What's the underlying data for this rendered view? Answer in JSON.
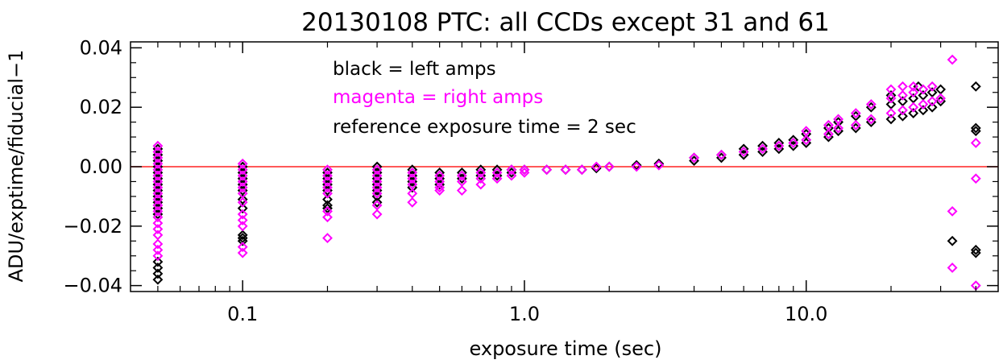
{
  "chart_data": {
    "type": "scatter",
    "title": "20130108 PTC: all CCDs except 31 and 61",
    "xlabel": "exposure time (sec)",
    "ylabel": "ADU/exptime/fiducial−1",
    "xscale": "log",
    "xlim": [
      0.04,
      48
    ],
    "ylim": [
      -0.042,
      0.042
    ],
    "x_ticks": [
      {
        "value": 0.1,
        "label": "0.1"
      },
      {
        "value": 1.0,
        "label": "1.0"
      },
      {
        "value": 10.0,
        "label": "10.0"
      }
    ],
    "y_ticks": [
      {
        "value": 0.04,
        "label": "0.04"
      },
      {
        "value": 0.02,
        "label": "0.02"
      },
      {
        "value": 0.0,
        "label": "0.00"
      },
      {
        "value": -0.02,
        "label": "−0.02"
      },
      {
        "value": -0.04,
        "label": "−0.04"
      }
    ],
    "reference_line": {
      "y": 0.0,
      "color": "#ff2020"
    },
    "annotations": [
      {
        "text": "black = left amps",
        "color": "#000000"
      },
      {
        "text": "magenta = right amps",
        "color": "#ff00ff"
      },
      {
        "text": "reference exposure time = 2 sec",
        "color": "#000000"
      }
    ],
    "marker": "open-diamond",
    "series": [
      {
        "color": "#000000",
        "points": [
          [
            0.05,
            0.006
          ],
          [
            0.05,
            0.004
          ],
          [
            0.05,
            0.002
          ],
          [
            0.05,
            0.0
          ],
          [
            0.05,
            -0.002
          ],
          [
            0.05,
            -0.004
          ],
          [
            0.05,
            -0.006
          ],
          [
            0.05,
            -0.008
          ],
          [
            0.05,
            -0.01
          ],
          [
            0.05,
            -0.012
          ],
          [
            0.05,
            -0.014
          ],
          [
            0.05,
            -0.016
          ],
          [
            0.05,
            -0.032
          ],
          [
            0.05,
            -0.034
          ],
          [
            0.05,
            -0.036
          ],
          [
            0.05,
            -0.038
          ],
          [
            0.1,
            0.0
          ],
          [
            0.1,
            -0.002
          ],
          [
            0.1,
            -0.004
          ],
          [
            0.1,
            -0.006
          ],
          [
            0.1,
            -0.008
          ],
          [
            0.1,
            -0.011
          ],
          [
            0.1,
            -0.014
          ],
          [
            0.1,
            -0.023
          ],
          [
            0.1,
            -0.024
          ],
          [
            0.1,
            -0.025
          ],
          [
            0.2,
            -0.002
          ],
          [
            0.2,
            -0.004
          ],
          [
            0.2,
            -0.006
          ],
          [
            0.2,
            -0.008
          ],
          [
            0.2,
            -0.011
          ],
          [
            0.2,
            -0.013
          ],
          [
            0.2,
            -0.014
          ],
          [
            0.3,
            0.0
          ],
          [
            0.3,
            -0.002
          ],
          [
            0.3,
            -0.004
          ],
          [
            0.3,
            -0.006
          ],
          [
            0.3,
            -0.008
          ],
          [
            0.3,
            -0.01
          ],
          [
            0.3,
            -0.012
          ],
          [
            0.4,
            -0.001
          ],
          [
            0.4,
            -0.003
          ],
          [
            0.4,
            -0.005
          ],
          [
            0.4,
            -0.007
          ],
          [
            0.5,
            -0.002
          ],
          [
            0.5,
            -0.004
          ],
          [
            0.5,
            -0.006
          ],
          [
            0.6,
            -0.002
          ],
          [
            0.6,
            -0.004
          ],
          [
            0.7,
            -0.001
          ],
          [
            0.7,
            -0.003
          ],
          [
            0.8,
            -0.001
          ],
          [
            0.8,
            -0.003
          ],
          [
            0.9,
            -0.001
          ],
          [
            0.9,
            -0.002
          ],
          [
            1.0,
            -0.001
          ],
          [
            1.2,
            -0.001
          ],
          [
            1.4,
            -0.001
          ],
          [
            1.6,
            -0.001
          ],
          [
            1.8,
            -0.0005
          ],
          [
            2.0,
            0.0
          ],
          [
            2.5,
            0.0005
          ],
          [
            3.0,
            0.001
          ],
          [
            4.0,
            0.002
          ],
          [
            4.0,
            0.003
          ],
          [
            5.0,
            0.003
          ],
          [
            5.0,
            0.004
          ],
          [
            6.0,
            0.004
          ],
          [
            6.0,
            0.006
          ],
          [
            7.0,
            0.005
          ],
          [
            7.0,
            0.007
          ],
          [
            8.0,
            0.006
          ],
          [
            8.0,
            0.008
          ],
          [
            9.0,
            0.007
          ],
          [
            9.0,
            0.009
          ],
          [
            10.0,
            0.008
          ],
          [
            10.0,
            0.011
          ],
          [
            12.0,
            0.01
          ],
          [
            12.0,
            0.013
          ],
          [
            13.0,
            0.012
          ],
          [
            13.0,
            0.015
          ],
          [
            15.0,
            0.013
          ],
          [
            15.0,
            0.017
          ],
          [
            17.0,
            0.015
          ],
          [
            17.0,
            0.02
          ],
          [
            20.0,
            0.016
          ],
          [
            20.0,
            0.021
          ],
          [
            20.0,
            0.024
          ],
          [
            22.0,
            0.017
          ],
          [
            22.0,
            0.022
          ],
          [
            24.0,
            0.018
          ],
          [
            24.0,
            0.023
          ],
          [
            26.0,
            0.019
          ],
          [
            26.0,
            0.024
          ],
          [
            28.0,
            0.02
          ],
          [
            28.0,
            0.025
          ],
          [
            25.0,
            0.027
          ],
          [
            30.0,
            0.026
          ],
          [
            30.0,
            0.022
          ],
          [
            33.0,
            -0.025
          ],
          [
            40.0,
            0.027
          ],
          [
            40.0,
            0.013
          ],
          [
            40.0,
            0.012
          ],
          [
            40.0,
            -0.028
          ],
          [
            40.0,
            -0.029
          ]
        ]
      },
      {
        "color": "#ff00ff",
        "points": [
          [
            0.05,
            0.007
          ],
          [
            0.05,
            0.005
          ],
          [
            0.05,
            0.003
          ],
          [
            0.05,
            0.001
          ],
          [
            0.05,
            -0.001
          ],
          [
            0.05,
            -0.003
          ],
          [
            0.05,
            -0.005
          ],
          [
            0.05,
            -0.007
          ],
          [
            0.05,
            -0.009
          ],
          [
            0.05,
            -0.011
          ],
          [
            0.05,
            -0.013
          ],
          [
            0.05,
            -0.015
          ],
          [
            0.05,
            -0.017
          ],
          [
            0.05,
            -0.019
          ],
          [
            0.05,
            -0.021
          ],
          [
            0.05,
            -0.023
          ],
          [
            0.05,
            -0.026
          ],
          [
            0.05,
            -0.028
          ],
          [
            0.05,
            -0.03
          ],
          [
            0.1,
            0.001
          ],
          [
            0.1,
            -0.001
          ],
          [
            0.1,
            -0.003
          ],
          [
            0.1,
            -0.005
          ],
          [
            0.1,
            -0.007
          ],
          [
            0.1,
            -0.009
          ],
          [
            0.1,
            -0.012
          ],
          [
            0.1,
            -0.016
          ],
          [
            0.1,
            -0.018
          ],
          [
            0.1,
            -0.02
          ],
          [
            0.1,
            -0.027
          ],
          [
            0.1,
            -0.029
          ],
          [
            0.2,
            -0.001
          ],
          [
            0.2,
            -0.003
          ],
          [
            0.2,
            -0.005
          ],
          [
            0.2,
            -0.007
          ],
          [
            0.2,
            -0.009
          ],
          [
            0.2,
            -0.015
          ],
          [
            0.2,
            -0.017
          ],
          [
            0.2,
            -0.024
          ],
          [
            0.3,
            -0.001
          ],
          [
            0.3,
            -0.003
          ],
          [
            0.3,
            -0.005
          ],
          [
            0.3,
            -0.007
          ],
          [
            0.3,
            -0.009
          ],
          [
            0.3,
            -0.013
          ],
          [
            0.3,
            -0.016
          ],
          [
            0.4,
            -0.002
          ],
          [
            0.4,
            -0.004
          ],
          [
            0.4,
            -0.006
          ],
          [
            0.4,
            -0.009
          ],
          [
            0.4,
            -0.012
          ],
          [
            0.5,
            -0.003
          ],
          [
            0.5,
            -0.005
          ],
          [
            0.5,
            -0.007
          ],
          [
            0.5,
            -0.008
          ],
          [
            0.6,
            -0.003
          ],
          [
            0.6,
            -0.005
          ],
          [
            0.6,
            -0.008
          ],
          [
            0.7,
            -0.002
          ],
          [
            0.7,
            -0.004
          ],
          [
            0.7,
            -0.006
          ],
          [
            0.8,
            -0.002
          ],
          [
            0.8,
            -0.004
          ],
          [
            0.9,
            -0.001
          ],
          [
            0.9,
            -0.003
          ],
          [
            1.0,
            -0.001
          ],
          [
            1.0,
            -0.002
          ],
          [
            1.2,
            -0.001
          ],
          [
            1.4,
            -0.001
          ],
          [
            1.6,
            -0.001
          ],
          [
            1.8,
            0.0
          ],
          [
            2.0,
            0.0
          ],
          [
            2.5,
            0.0
          ],
          [
            3.0,
            0.0005
          ],
          [
            4.0,
            0.003
          ],
          [
            5.0,
            0.004
          ],
          [
            6.0,
            0.005
          ],
          [
            7.0,
            0.006
          ],
          [
            8.0,
            0.007
          ],
          [
            9.0,
            0.008
          ],
          [
            10.0,
            0.009
          ],
          [
            10.0,
            0.012
          ],
          [
            12.0,
            0.011
          ],
          [
            12.0,
            0.014
          ],
          [
            13.0,
            0.013
          ],
          [
            13.0,
            0.016
          ],
          [
            15.0,
            0.014
          ],
          [
            15.0,
            0.018
          ],
          [
            17.0,
            0.016
          ],
          [
            17.0,
            0.021
          ],
          [
            20.0,
            0.018
          ],
          [
            20.0,
            0.023
          ],
          [
            20.0,
            0.026
          ],
          [
            22.0,
            0.019
          ],
          [
            22.0,
            0.024
          ],
          [
            22.0,
            0.027
          ],
          [
            24.0,
            0.02
          ],
          [
            24.0,
            0.025
          ],
          [
            24.0,
            0.027
          ],
          [
            26.0,
            0.021
          ],
          [
            26.0,
            0.026
          ],
          [
            28.0,
            0.022
          ],
          [
            28.0,
            0.027
          ],
          [
            30.0,
            0.023
          ],
          [
            33.0,
            0.036
          ],
          [
            33.0,
            -0.015
          ],
          [
            33.0,
            -0.034
          ],
          [
            40.0,
            0.008
          ],
          [
            40.0,
            -0.004
          ],
          [
            40.0,
            -0.04
          ]
        ]
      }
    ]
  }
}
